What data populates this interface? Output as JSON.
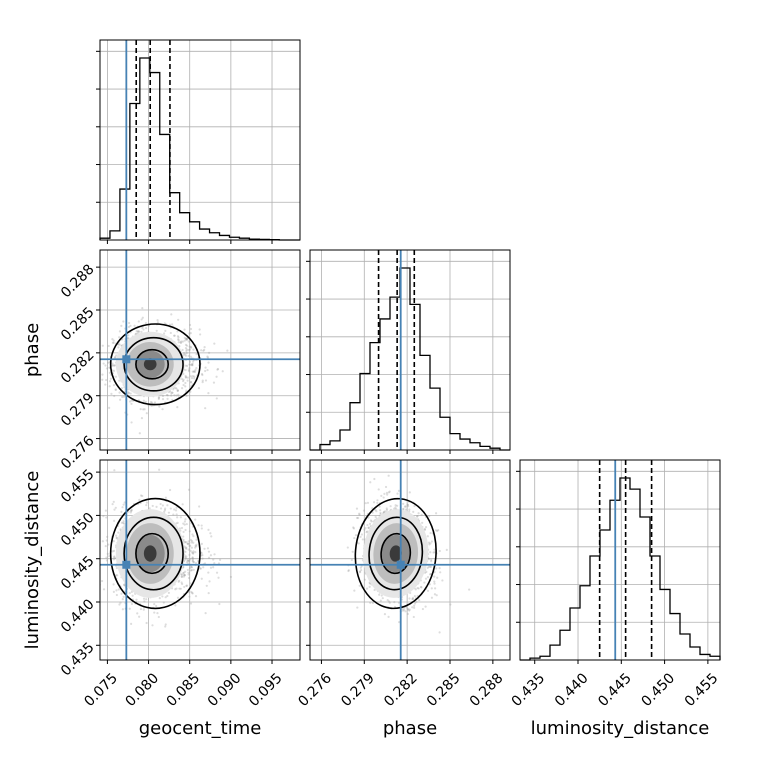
{
  "chart_data": {
    "type": "corner",
    "colors": {
      "truth": "#4682b4",
      "hist": "#000000",
      "scatter": "#9e9e9e",
      "grid": "#b0b0b0"
    },
    "parameters": [
      {
        "name": "geocent_time",
        "label": "geocent_time",
        "range": [
          0.0741,
          0.0984
        ],
        "ticks": [
          "0.075",
          "0.080",
          "0.085",
          "0.090",
          "0.095"
        ],
        "tick_values": [
          0.075,
          0.08,
          0.085,
          0.09,
          0.095
        ],
        "truth": 0.0773,
        "quantiles": [
          0.0785,
          0.0802,
          0.0826
        ],
        "posterior_mean": 0.0802,
        "posterior_sd": 0.0022,
        "hist": {
          "edges_start": 0.0741,
          "bin_width": 0.00121,
          "counts": [
            1,
            5,
            28,
            75,
            100,
            92,
            58,
            26,
            15,
            10,
            6,
            4,
            2.5,
            1.5,
            1,
            0.5,
            0.3,
            0.2,
            0,
            0
          ]
        }
      },
      {
        "name": "phase",
        "label": "phase",
        "range": [
          0.2752,
          0.2892
        ],
        "ticks": [
          "0.276",
          "0.279",
          "0.282",
          "0.285",
          "0.288"
        ],
        "tick_values": [
          0.276,
          0.279,
          0.282,
          0.285,
          0.288
        ],
        "truth": 0.28155,
        "quantiles": [
          0.28,
          0.2813,
          0.2825
        ],
        "posterior_mean": 0.2812,
        "posterior_sd": 0.0012,
        "hist": {
          "edges_start": 0.2752,
          "bin_width": 0.0007,
          "counts": [
            0,
            3,
            5,
            11,
            26,
            42,
            59,
            72,
            84,
            100,
            80,
            52,
            34,
            18,
            9,
            6,
            4,
            2,
            1,
            0
          ]
        }
      },
      {
        "name": "luminosity_distance",
        "label": "luminosity_distance",
        "range": [
          0.4333,
          0.4564
        ],
        "ticks": [
          "0.435",
          "0.440",
          "0.445",
          "0.450",
          "0.455"
        ],
        "tick_values": [
          0.435,
          0.44,
          0.445,
          0.45,
          0.455
        ],
        "truth": 0.4443,
        "quantiles": [
          0.4425,
          0.4455,
          0.4485
        ],
        "posterior_mean": 0.4456,
        "posterior_sd": 0.0027,
        "hist": {
          "edges_start": 0.4333,
          "bin_width": 0.001155,
          "counts": [
            0,
            1,
            2,
            8,
            16,
            28,
            40,
            56,
            70,
            86,
            98,
            92,
            77,
            56,
            38,
            25,
            14,
            7,
            3,
            2
          ]
        }
      }
    ],
    "pairs": [
      {
        "x": "geocent_time",
        "y": "phase",
        "correlation": 0.0
      },
      {
        "x": "geocent_time",
        "y": "luminosity_distance",
        "correlation": 0.0
      },
      {
        "x": "phase",
        "y": "luminosity_distance",
        "correlation": -0.15
      }
    ],
    "levels": [
      0.39,
      0.86,
      0.99
    ],
    "grid": true,
    "legend": "none"
  }
}
